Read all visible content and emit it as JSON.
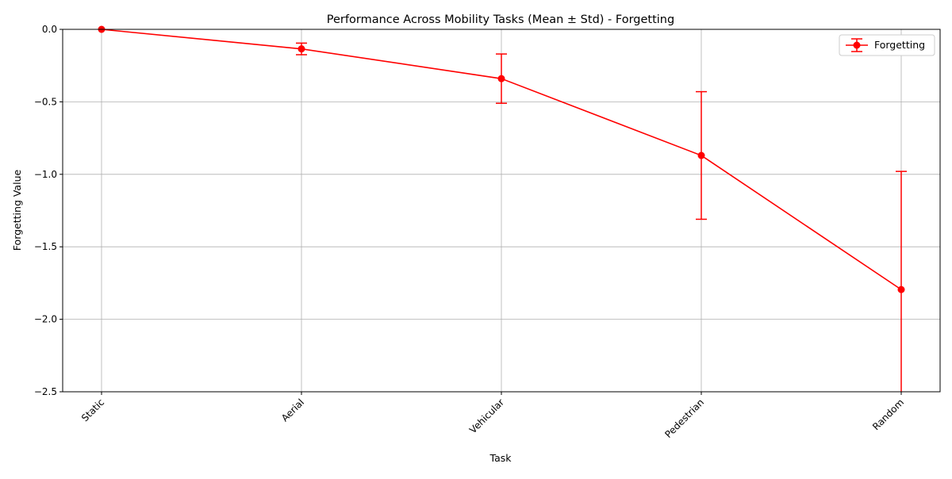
{
  "chart_data": {
    "type": "line",
    "title": "Performance Across Mobility Tasks (Mean ± Std) - Forgetting",
    "xlabel": "Task",
    "ylabel": "Forgetting Value",
    "categories": [
      "Static",
      "Aerial",
      "Vehicular",
      "Pedestrian",
      "Random"
    ],
    "series": [
      {
        "name": "Forgetting",
        "values": [
          0.0,
          -0.135,
          -0.34,
          -0.87,
          -1.795
        ],
        "std": [
          0.0,
          0.04,
          0.17,
          0.44,
          0.815
        ],
        "color": "#ff0000",
        "marker": "circle"
      }
    ],
    "ylim": [
      -2.5,
      0.0
    ],
    "yticks": [
      0.0,
      -0.5,
      -1.0,
      -1.5,
      -2.0,
      -2.5
    ],
    "ytick_labels": [
      "0.0",
      "−0.5",
      "−1.0",
      "−1.5",
      "−2.0",
      "−2.5"
    ],
    "xtick_rotation": 45,
    "grid": true,
    "legend": "upper-right"
  }
}
